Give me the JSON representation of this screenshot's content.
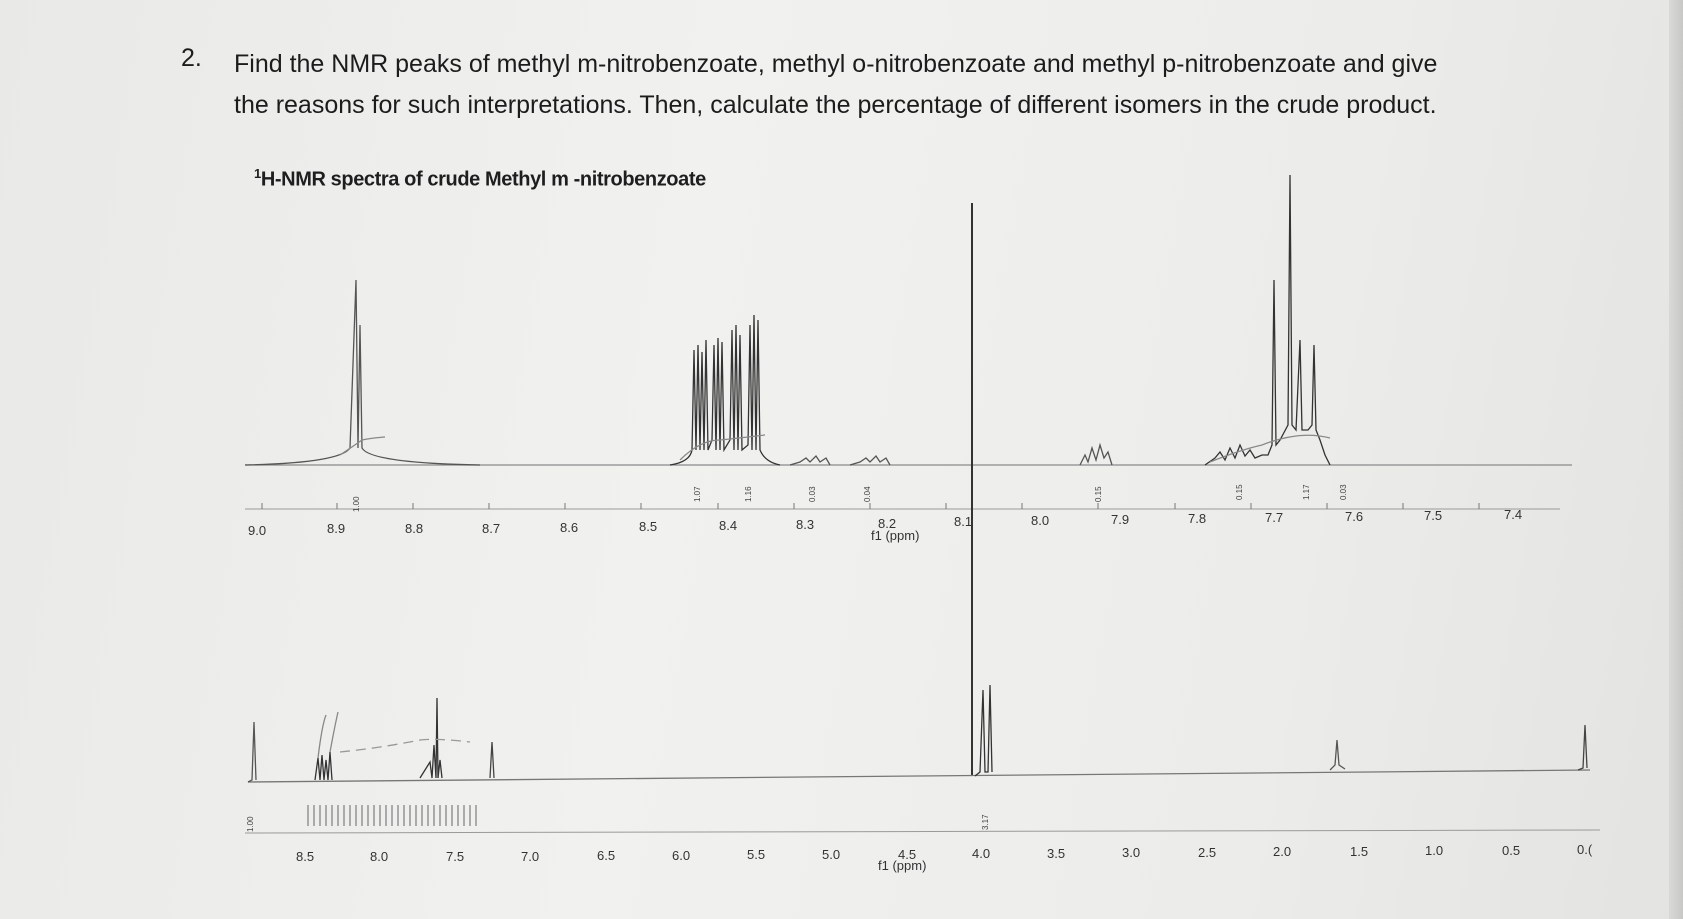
{
  "question": {
    "number": "2.",
    "text": "Find the NMR peaks of methyl m-nitrobenzoate, methyl o-nitrobenzoate and methyl p-nitrobenzoate and give the reasons for such interpretations. Then, calculate the percentage of different isomers in the crude product."
  },
  "spectrum_title": {
    "sup": "1",
    "rest": "H-NMR spectra of crude Methyl m -nitrobenzoate"
  },
  "upper_axis": {
    "ticks": [
      "9.0",
      "8.9",
      "8.8",
      "8.7",
      "8.6",
      "8.5",
      "8.4",
      "8.3",
      "8.2",
      "8.1",
      "8.0",
      "7.9",
      "7.8",
      "7.7",
      "7.6",
      "7.5",
      "7.4"
    ],
    "unit": "f1 (ppm)"
  },
  "lower_axis": {
    "ticks": [
      "8.5",
      "8.0",
      "7.5",
      "7.0",
      "6.5",
      "6.0",
      "5.5",
      "5.0",
      "4.5",
      "4.0",
      "3.5",
      "3.0",
      "2.5",
      "2.0",
      "1.5",
      "1.0",
      "0.5",
      "0.("
    ],
    "unit": "f1 (ppm)"
  },
  "integrals_upper": [
    "1.00",
    "1.07",
    "1.16",
    "0.03",
    "0.04",
    "0.15",
    "0.15",
    "1.17",
    "0.03"
  ],
  "integrals_lower": [
    "1.00",
    "3.17"
  ]
}
